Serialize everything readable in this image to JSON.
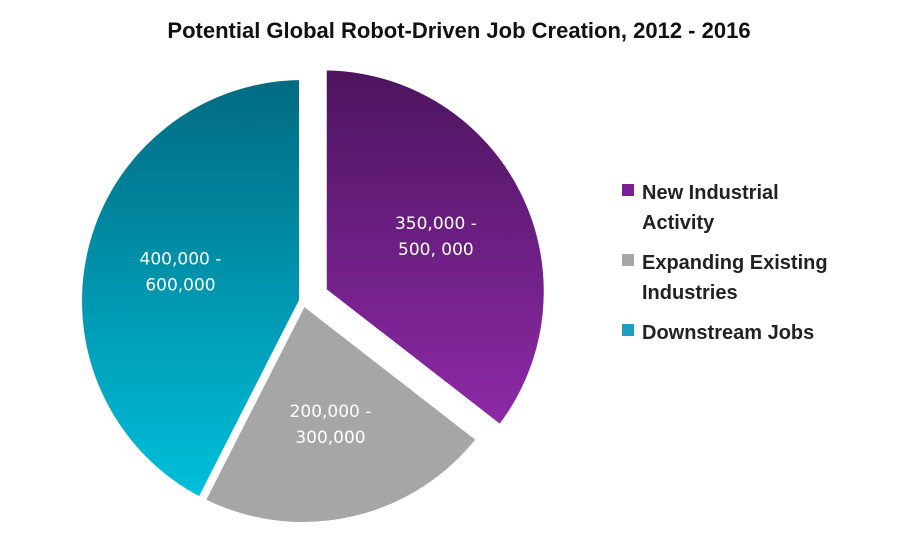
{
  "chart_data": {
    "type": "pie",
    "title": "Potential Global Robot-Driven Job Creation, 2012 - 2016",
    "slices": [
      {
        "name": "New Industrial Activity",
        "legend_lines": [
          "New Industrial",
          "Activity"
        ],
        "label_lines": [
          "350,000 -",
          "500, 000"
        ],
        "percent": 35.5,
        "color_light": "#8e2aa8",
        "color_dark": "#4c145e",
        "exploded": true
      },
      {
        "name": "Expanding Existing Industries",
        "legend_lines": [
          "Expanding Existing",
          "Industries"
        ],
        "label_lines": [
          "200,000 -",
          "300,000"
        ],
        "percent": 22.0,
        "color_light": "#a6a6a6",
        "color_dark": "#a6a6a6",
        "exploded": false
      },
      {
        "name": "Downstream Jobs",
        "legend_lines": [
          "Downstream Jobs"
        ],
        "label_lines": [
          "400,000 -",
          "600,000"
        ],
        "percent": 42.5,
        "color_light": "#00c0dc",
        "color_dark": "#006a80",
        "exploded": false
      }
    ],
    "legend_colors": [
      "#7b1f96",
      "#a6a6a6",
      "#1f9fbf"
    ],
    "legend_position": "right"
  }
}
